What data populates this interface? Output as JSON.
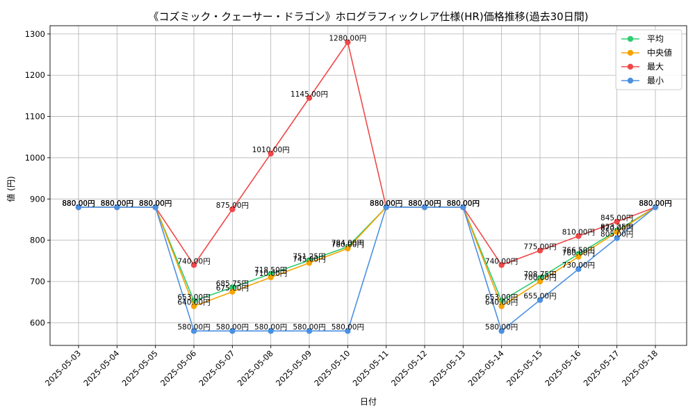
{
  "chart_data": {
    "type": "line",
    "title": "《コズミック・クェーサー・ドラゴン》ホログラフィックレア仕様(HR)価格推移(過去30日間)",
    "xlabel": "日付",
    "ylabel": "値 (円)",
    "x": [
      "2025-05-03",
      "2025-05-04",
      "2025-05-05",
      "2025-05-06",
      "2025-05-07",
      "2025-05-08",
      "2025-05-09",
      "2025-05-10",
      "2025-05-11",
      "2025-05-12",
      "2025-05-13",
      "2025-05-14",
      "2025-05-15",
      "2025-05-16",
      "2025-05-17",
      "2025-05-18"
    ],
    "yticks": [
      600,
      700,
      800,
      900,
      1000,
      1100,
      1200,
      1300
    ],
    "ylim": [
      545,
      1320
    ],
    "grid": true,
    "legend_position": "top-right",
    "value_suffix": "円",
    "series": [
      {
        "name": "平均",
        "color": "#2ecc71",
        "values": [
          880,
          880,
          880,
          653,
          685.75,
          718.5,
          751.25,
          784,
          880,
          880,
          880,
          653,
          708.75,
          766.5,
          823.25,
          880
        ]
      },
      {
        "name": "中央値",
        "color": "#f5a300",
        "values": [
          880,
          880,
          880,
          640,
          675,
          710,
          745,
          780,
          880,
          880,
          880,
          640,
          700,
          760,
          820,
          880
        ]
      },
      {
        "name": "最大",
        "color": "#f04848",
        "values": [
          880,
          880,
          880,
          740,
          875,
          1010,
          1145,
          1280,
          880,
          880,
          880,
          740,
          775,
          810,
          845,
          880
        ]
      },
      {
        "name": "最小",
        "color": "#4a90e2",
        "values": [
          880,
          880,
          880,
          580,
          580,
          580,
          580,
          580,
          880,
          880,
          880,
          580,
          655,
          730,
          805,
          880
        ]
      }
    ]
  }
}
